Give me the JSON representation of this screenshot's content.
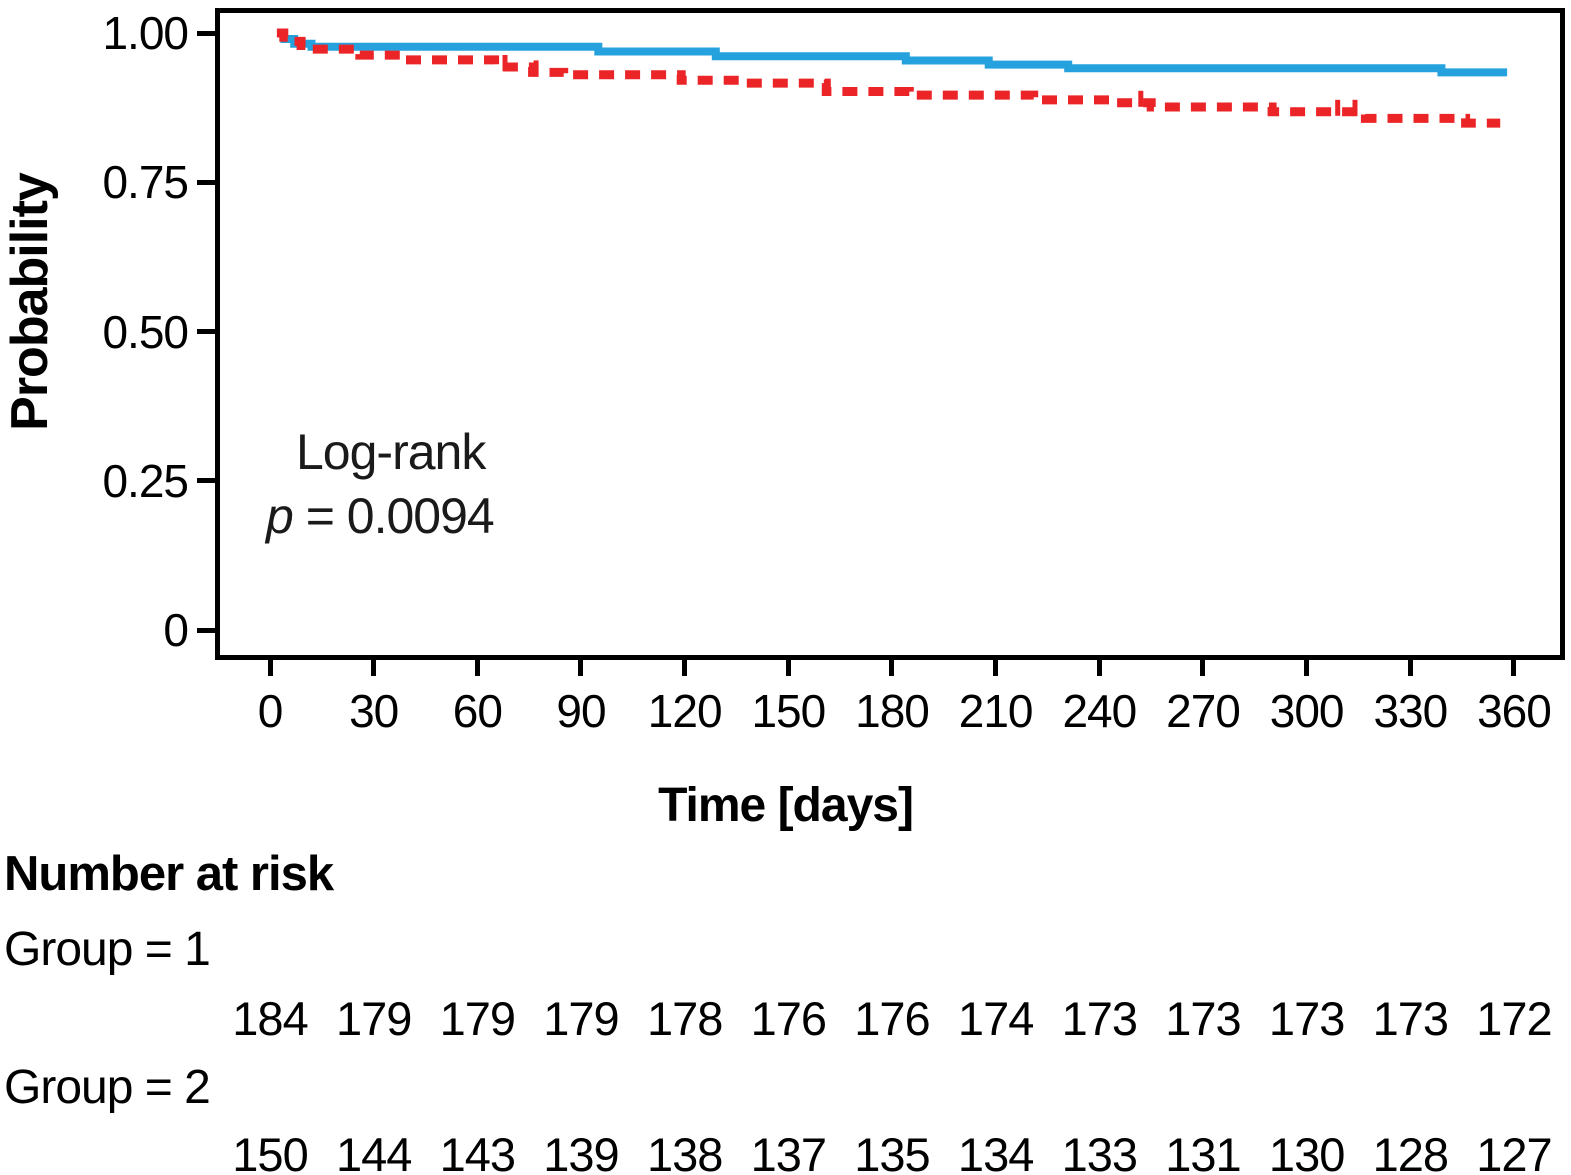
{
  "chart_data": {
    "type": "line",
    "variant": "kaplan-meier-step",
    "title": "",
    "xlabel": "Time [days]",
    "ylabel": "Probability",
    "x_ticks": [
      0,
      30,
      60,
      90,
      120,
      150,
      180,
      210,
      240,
      270,
      300,
      330,
      360
    ],
    "y_ticks": [
      {
        "label": "1.00",
        "value": 1.0
      },
      {
        "label": "0.75",
        "value": 0.75
      },
      {
        "label": "0.50",
        "value": 0.5
      },
      {
        "label": "0.25",
        "value": 0.25
      },
      {
        "label": "0",
        "value": 0.0
      }
    ],
    "xlim": [
      0,
      360
    ],
    "ylim": [
      0,
      1.04
    ],
    "grid": false,
    "legend": "none",
    "annotation": {
      "line1": "Log-rank",
      "p_symbol": "p",
      "p_text": " = 0.0094"
    },
    "series": [
      {
        "name": "Group = 1",
        "color": "#25a2dd",
        "line_style": "solid",
        "end_day": 358,
        "censor_days": [],
        "steps": [
          [
            3,
            0.99
          ],
          [
            7,
            0.982
          ],
          [
            12,
            0.977
          ],
          [
            95,
            0.969
          ],
          [
            129,
            0.961
          ],
          [
            184,
            0.954
          ],
          [
            208,
            0.947
          ],
          [
            231,
            0.941
          ],
          [
            339,
            0.934
          ]
        ]
      },
      {
        "name": "Group = 2",
        "color": "#eb2428",
        "line_style": "dashed",
        "end_day": 356,
        "censor_days": [
          68,
          77,
          161,
          252,
          309,
          314
        ],
        "steps": [
          [
            2,
            1.0
          ],
          [
            4,
            0.993
          ],
          [
            6,
            0.986
          ],
          [
            9,
            0.979
          ],
          [
            12,
            0.973
          ],
          [
            26,
            0.963
          ],
          [
            38,
            0.955
          ],
          [
            65,
            0.943
          ],
          [
            76,
            0.934
          ],
          [
            85,
            0.93
          ],
          [
            119,
            0.921
          ],
          [
            136,
            0.916
          ],
          [
            161,
            0.902
          ],
          [
            185,
            0.896
          ],
          [
            221,
            0.888
          ],
          [
            243,
            0.883
          ],
          [
            255,
            0.876
          ],
          [
            290,
            0.868
          ],
          [
            317,
            0.857
          ],
          [
            346,
            0.849
          ]
        ]
      }
    ],
    "number_at_risk": {
      "title": "Number at risk",
      "times": [
        0,
        30,
        60,
        90,
        120,
        150,
        180,
        210,
        240,
        270,
        300,
        330,
        360
      ],
      "groups": [
        {
          "label": "Group = 1",
          "counts": [
            184,
            179,
            179,
            179,
            178,
            176,
            176,
            174,
            173,
            173,
            173,
            173,
            172
          ]
        },
        {
          "label": "Group = 2",
          "counts": [
            150,
            144,
            143,
            139,
            138,
            137,
            135,
            134,
            133,
            131,
            130,
            128,
            127
          ]
        }
      ]
    },
    "axis_color": "#000000",
    "background_color": "#ffffff"
  }
}
